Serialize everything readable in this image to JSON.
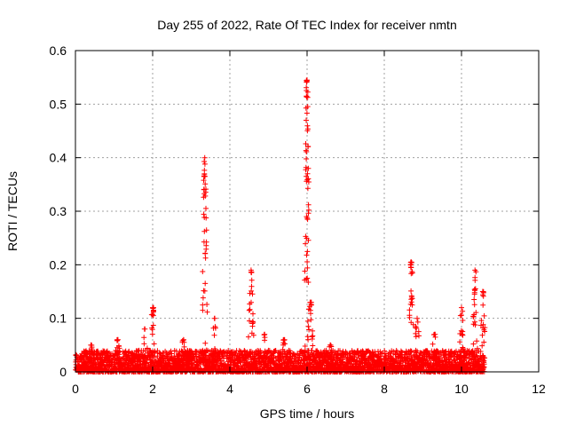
{
  "chart_data": {
    "type": "scatter",
    "title": "Day 255 of 2022, Rate Of TEC Index for receiver nmtn",
    "xlabel": "GPS time / hours",
    "ylabel": "ROTI / TECUs",
    "xlim": [
      0,
      12
    ],
    "ylim": [
      0,
      0.6
    ],
    "xticks": [
      "0",
      "2",
      "4",
      "6",
      "8",
      "10",
      "12"
    ],
    "yticks": [
      "0",
      "0.1",
      "0.2",
      "0.3",
      "0.4",
      "0.5",
      "0.6"
    ],
    "grid": true,
    "marker": "+",
    "color": "#ff0000",
    "x_extent": [
      0,
      10.6
    ],
    "baseline_range": [
      0.0,
      0.04
    ],
    "peaks": [
      {
        "x": 0.4,
        "y": 0.05
      },
      {
        "x": 1.1,
        "y": 0.06
      },
      {
        "x": 1.8,
        "y": 0.08
      },
      {
        "x": 2.0,
        "y": 0.12
      },
      {
        "x": 2.8,
        "y": 0.06
      },
      {
        "x": 3.35,
        "y": 0.4
      },
      {
        "x": 3.6,
        "y": 0.1
      },
      {
        "x": 4.55,
        "y": 0.19
      },
      {
        "x": 4.9,
        "y": 0.07
      },
      {
        "x": 5.4,
        "y": 0.06
      },
      {
        "x": 6.0,
        "y": 0.545
      },
      {
        "x": 6.1,
        "y": 0.13
      },
      {
        "x": 6.6,
        "y": 0.05
      },
      {
        "x": 8.7,
        "y": 0.205
      },
      {
        "x": 8.85,
        "y": 0.1
      },
      {
        "x": 9.3,
        "y": 0.07
      },
      {
        "x": 10.0,
        "y": 0.12
      },
      {
        "x": 10.35,
        "y": 0.19
      },
      {
        "x": 10.55,
        "y": 0.15
      }
    ]
  }
}
